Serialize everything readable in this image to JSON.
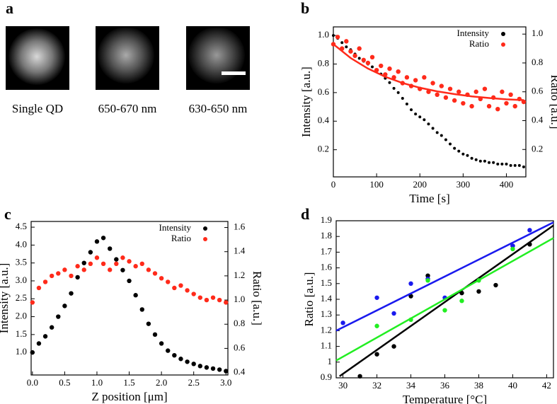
{
  "panel_a": {
    "label": "a",
    "captions": [
      "Single QD",
      "650-670 nm",
      "630-650 nm"
    ]
  },
  "chart_data": [
    {
      "type": "scatter",
      "panel_label": "b",
      "xlabel": "Time [s]",
      "ylabel": "Intensity [a.u.]",
      "y2label": "Ratio [a.u.]",
      "legend": "upper right",
      "xlim": [
        0,
        445
      ],
      "xticks": [
        0,
        100,
        200,
        300,
        400
      ],
      "ylim": [
        0.01,
        1.06
      ],
      "yticks": [
        0.2,
        0.4,
        0.6,
        0.8,
        {
          "value": 1,
          "label": "1.0"
        }
      ],
      "y2lim": [
        0.01,
        1.05
      ],
      "y2ticks": [
        0.2,
        0.4,
        0.6,
        0.8,
        {
          "value": 1,
          "label": "1.0"
        }
      ],
      "x": [
        0,
        10,
        20,
        30,
        40,
        50,
        60,
        70,
        80,
        90,
        100,
        110,
        120,
        130,
        140,
        150,
        160,
        170,
        180,
        190,
        200,
        210,
        220,
        230,
        240,
        250,
        260,
        270,
        280,
        290,
        300,
        310,
        320,
        330,
        340,
        350,
        360,
        370,
        380,
        390,
        400,
        410,
        420,
        430,
        440
      ],
      "series": [
        {
          "name": "Intensity",
          "color": "#000000",
          "values": [
            1.0,
            0.98,
            0.95,
            0.92,
            0.9,
            0.87,
            0.84,
            0.82,
            0.8,
            0.78,
            0.76,
            0.73,
            0.7,
            0.67,
            0.63,
            0.6,
            0.56,
            0.52,
            0.48,
            0.45,
            0.43,
            0.41,
            0.38,
            0.35,
            0.32,
            0.3,
            0.27,
            0.24,
            0.21,
            0.19,
            0.17,
            0.16,
            0.14,
            0.13,
            0.12,
            0.12,
            0.11,
            0.11,
            0.1,
            0.1,
            0.1,
            0.09,
            0.09,
            0.09,
            0.08
          ]
        },
        {
          "name": "Ratio",
          "color": "#ff2a1a",
          "axis": "y2",
          "values": [
            0.93,
            0.98,
            0.9,
            0.95,
            0.88,
            0.85,
            0.9,
            0.82,
            0.8,
            0.84,
            0.75,
            0.78,
            0.72,
            0.76,
            0.7,
            0.74,
            0.66,
            0.7,
            0.64,
            0.68,
            0.62,
            0.7,
            0.6,
            0.66,
            0.58,
            0.64,
            0.56,
            0.62,
            0.54,
            0.6,
            0.52,
            0.58,
            0.5,
            0.6,
            0.55,
            0.62,
            0.5,
            0.56,
            0.48,
            0.6,
            0.52,
            0.58,
            0.5,
            0.55,
            0.53
          ],
          "fit": {
            "x": [
              0,
              40,
              80,
              120,
              160,
              200,
              240,
              280,
              320,
              360,
              400,
              440
            ],
            "values": [
              0.93,
              0.834,
              0.761,
              0.704,
              0.661,
              0.628,
              0.603,
              0.584,
              0.568,
              0.557,
              0.548,
              0.542
            ]
          }
        }
      ]
    },
    {
      "type": "scatter",
      "panel_label": "c",
      "xlabel": "Z position [μm]",
      "ylabel": "Intensity [a.u.]",
      "y2label": "Ratio [a.u.]",
      "legend": "upper right",
      "xlim": [
        -0.02,
        3.03
      ],
      "xticks": [
        {
          "value": 0,
          "label": "0.0"
        },
        0.5,
        {
          "value": 1,
          "label": "1.0"
        },
        1.5,
        {
          "value": 2,
          "label": "2.0"
        },
        2.5,
        {
          "value": 3,
          "label": "3.0"
        }
      ],
      "ylim": [
        0.37,
        4.66
      ],
      "yticks": [
        {
          "value": 1,
          "label": "1.0"
        },
        1.5,
        {
          "value": 2,
          "label": "2.0"
        },
        2.5,
        {
          "value": 3,
          "label": "3.0"
        },
        3.5,
        {
          "value": 4,
          "label": "4.0"
        },
        4.5
      ],
      "y2lim": [
        0.38,
        1.65
      ],
      "y2ticks": [
        0.4,
        0.6,
        0.8,
        {
          "value": 1,
          "label": "1.0"
        },
        1.2,
        1.4,
        1.6
      ],
      "x": [
        0,
        0.1,
        0.2,
        0.3,
        0.4,
        0.5,
        0.6,
        0.7,
        0.8,
        0.9,
        1.0,
        1.1,
        1.2,
        1.3,
        1.4,
        1.5,
        1.6,
        1.7,
        1.8,
        1.9,
        2.0,
        2.1,
        2.2,
        2.3,
        2.4,
        2.5,
        2.6,
        2.7,
        2.8,
        2.9,
        3.0
      ],
      "series": [
        {
          "name": "Intensity",
          "color": "#000000",
          "values": [
            1.0,
            1.25,
            1.45,
            1.7,
            2.0,
            2.3,
            2.65,
            3.1,
            3.5,
            3.8,
            4.1,
            4.2,
            3.9,
            3.6,
            3.3,
            3.0,
            2.6,
            2.2,
            1.8,
            1.5,
            1.25,
            1.05,
            0.92,
            0.82,
            0.74,
            0.68,
            0.62,
            0.58,
            0.55,
            0.52,
            0.48
          ]
        },
        {
          "name": "Ratio",
          "color": "#ff2a1a",
          "axis": "y2",
          "values": [
            0.98,
            1.1,
            1.15,
            1.2,
            1.22,
            1.25,
            1.2,
            1.28,
            1.25,
            1.3,
            1.35,
            1.3,
            1.25,
            1.3,
            1.35,
            1.32,
            1.28,
            1.3,
            1.25,
            1.22,
            1.18,
            1.15,
            1.1,
            1.12,
            1.08,
            1.05,
            1.02,
            1.0,
            1.02,
            1.0,
            0.98
          ]
        }
      ]
    },
    {
      "type": "scatter",
      "panel_label": "d",
      "xlabel": "Temperature [°C]",
      "ylabel": "Ratio [a.u.]",
      "xlim": [
        29.6,
        42.4
      ],
      "xticks": [
        30,
        32,
        34,
        36,
        38,
        40,
        42
      ],
      "ylim": [
        0.9,
        1.9
      ],
      "yticks": [
        0.9,
        1,
        1.1,
        1.2,
        1.3,
        1.4,
        1.5,
        1.6,
        1.7,
        1.8,
        1.9
      ],
      "series": [
        {
          "color": "#000000",
          "x": [
            31,
            32,
            33,
            34,
            35,
            37,
            38,
            39,
            40,
            41
          ],
          "values": [
            0.91,
            1.05,
            1.1,
            1.42,
            1.55,
            1.44,
            1.45,
            1.49,
            1.74,
            1.75
          ],
          "fit": {
            "x": [
              29.8,
              42.4
            ],
            "values": [
              0.91,
              1.87
            ]
          }
        },
        {
          "color": "#1a1aee",
          "x": [
            30,
            32,
            33,
            34,
            35,
            36,
            40,
            41
          ],
          "values": [
            1.25,
            1.41,
            1.31,
            1.5,
            1.53,
            1.41,
            1.74,
            1.84
          ],
          "fit": {
            "x": [
              29.6,
              42.4
            ],
            "values": [
              1.2,
              1.89
            ]
          }
        },
        {
          "color": "#22ee22",
          "x": [
            32,
            34,
            35,
            36,
            37,
            38,
            40
          ],
          "values": [
            1.23,
            1.27,
            1.52,
            1.33,
            1.39,
            1.52,
            1.72
          ],
          "fit": {
            "x": [
              29.6,
              42.4
            ],
            "values": [
              1.01,
              1.79
            ]
          }
        }
      ]
    }
  ]
}
